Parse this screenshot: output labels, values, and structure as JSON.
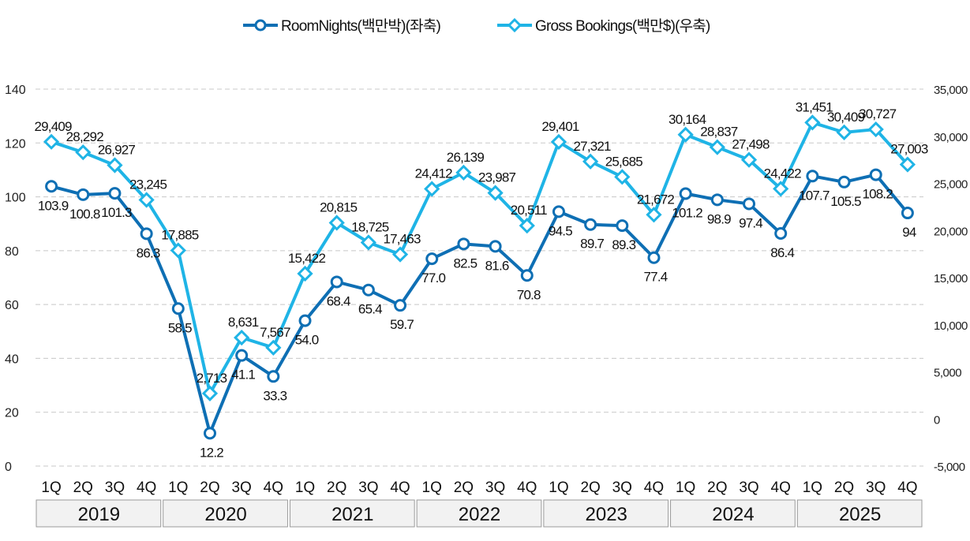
{
  "chart_data": {
    "type": "line",
    "title": "",
    "legend_position": "top-center",
    "grid": true,
    "years": [
      "2019",
      "2020",
      "2021",
      "2022",
      "2023",
      "2024",
      "2025"
    ],
    "quarters": [
      "1Q",
      "2Q",
      "3Q",
      "4Q"
    ],
    "x": [
      "2019 1Q",
      "2019 2Q",
      "2019 3Q",
      "2019 4Q",
      "2020 1Q",
      "2020 2Q",
      "2020 3Q",
      "2020 4Q",
      "2021 1Q",
      "2021 2Q",
      "2021 3Q",
      "2021 4Q",
      "2022 1Q",
      "2022 2Q",
      "2022 3Q",
      "2022 4Q",
      "2023 1Q",
      "2023 2Q",
      "2023 3Q",
      "2023 4Q",
      "2024 1Q",
      "2024 2Q",
      "2024 3Q",
      "2024 4Q",
      "2025 1Q",
      "2025 2Q",
      "2025 3Q",
      "2025 4Q"
    ],
    "y_left": {
      "min": 0,
      "max": 140,
      "ticks": [
        "0",
        "20",
        "40",
        "60",
        "80",
        "100",
        "120",
        "140"
      ]
    },
    "y_right": {
      "min": -5000,
      "max": 35000,
      "ticks": [
        "-5,000",
        "0",
        "5,000",
        "10,000",
        "15,000",
        "20,000",
        "25,000",
        "30,000",
        "35,000"
      ]
    },
    "series": [
      {
        "name": "RoomNights(백만박)(좌축)",
        "axis": "left",
        "color": "#0e6fb4",
        "marker": "circle",
        "values": [
          103.9,
          100.8,
          101.3,
          86.3,
          58.5,
          12.2,
          41.1,
          33.3,
          54.0,
          68.4,
          65.4,
          59.7,
          77.0,
          82.5,
          81.6,
          70.8,
          94.5,
          89.7,
          89.3,
          77.4,
          101.2,
          98.9,
          97.4,
          86.4,
          107.7,
          105.5,
          108.2,
          94
        ],
        "labels": [
          "103.9",
          "100.8",
          "101.3",
          "86.3",
          "58.5",
          "12.2",
          "41.1",
          "33.3",
          "54.0",
          "68.4",
          "65.4",
          "59.7",
          "77.0",
          "82.5",
          "81.6",
          "70.8",
          "94.5",
          "89.7",
          "89.3",
          "77.4",
          "101.2",
          "98.9",
          "97.4",
          "86.4",
          "107.7",
          "105.5",
          "108.2",
          "94"
        ]
      },
      {
        "name": "Gross Bookings(백만$)(우축)",
        "axis": "right",
        "color": "#1fb4e6",
        "marker": "diamond",
        "values": [
          29409,
          28292,
          26927,
          23245,
          17885,
          2713,
          8631,
          7567,
          15422,
          20815,
          18725,
          17463,
          24412,
          26139,
          23987,
          20511,
          29401,
          27321,
          25685,
          21672,
          30164,
          28837,
          27498,
          24422,
          31451,
          30409,
          30727,
          27003
        ],
        "labels": [
          "29,409",
          "28,292",
          "26,927",
          "23,245",
          "17,885",
          "2,713",
          "8,631",
          "7,567",
          "15,422",
          "20,815",
          "18,725",
          "17,463",
          "24,412",
          "26,139",
          "23,987",
          "20,511",
          "29,401",
          "27,321",
          "25,685",
          "21,672",
          "30,164",
          "28,837",
          "27,498",
          "24,422",
          "31,451",
          "30,409",
          "30,727",
          "27,003"
        ]
      }
    ]
  }
}
